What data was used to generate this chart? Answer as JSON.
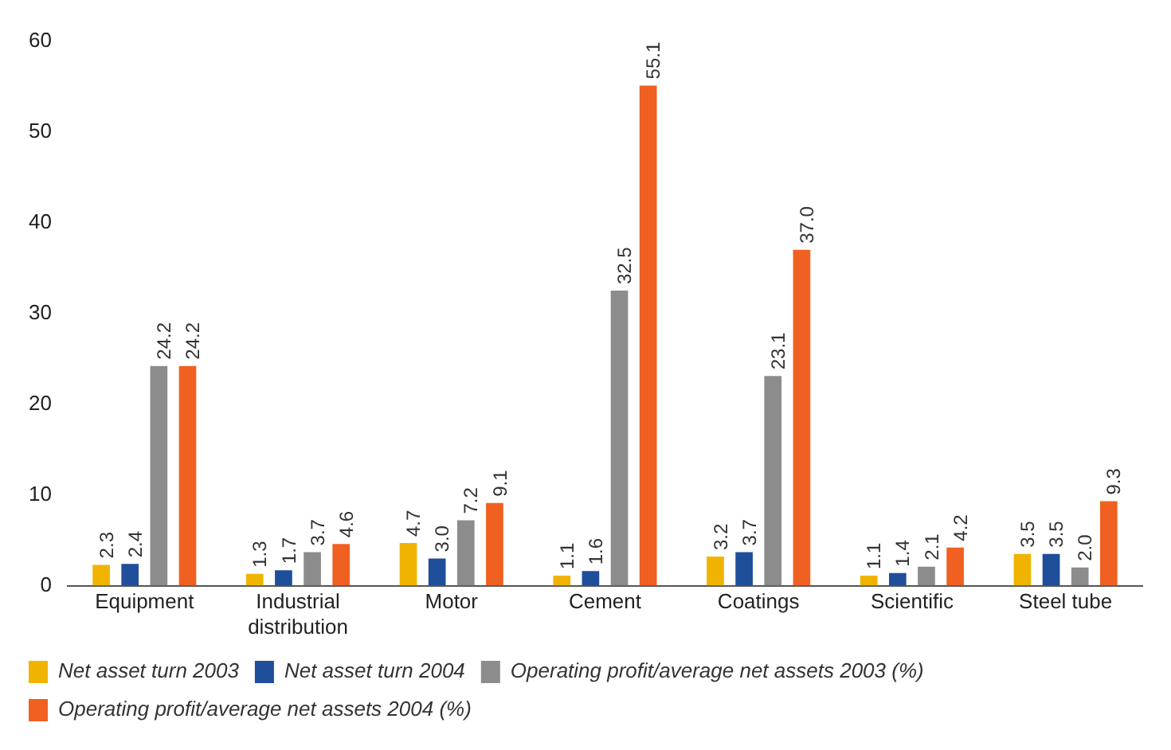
{
  "chart_data": {
    "type": "bar",
    "categories": [
      "Equipment",
      "Industrial distribution",
      "Motor",
      "Cement",
      "Coatings",
      "Scientific",
      "Steel tube"
    ],
    "ylim": [
      0,
      60
    ],
    "yticks": [
      0,
      10,
      20,
      30,
      40,
      50,
      60
    ],
    "grid": false,
    "legend": "bottom",
    "series": [
      {
        "name": "Net asset turn 2003",
        "color": "#f0b400",
        "values": [
          2.3,
          1.3,
          4.7,
          1.1,
          3.2,
          1.1,
          3.5
        ],
        "value_labels": [
          "2.3",
          "1.3",
          "4.7",
          "1.1",
          "3.2",
          "1.1",
          "3.5"
        ]
      },
      {
        "name": "Net asset turn 2004",
        "color": "#1f4e9a",
        "values": [
          2.4,
          1.7,
          3.0,
          1.6,
          3.7,
          1.4,
          3.5
        ],
        "value_labels": [
          "2.4",
          "1.7",
          "3.0",
          "1.6",
          "3.7",
          "1.4",
          "3.5"
        ]
      },
      {
        "name": "Operating profit/average net assets 2003 (%)",
        "color": "#8c8c8c",
        "values": [
          24.2,
          3.7,
          7.2,
          32.5,
          23.1,
          2.1,
          2.0
        ],
        "value_labels": [
          "24.2",
          "3.7",
          "7.2",
          "32.5",
          "23.1",
          "2.1",
          "2.0"
        ]
      },
      {
        "name": "Operating profit/average net assets 2004 (%)",
        "color": "#f06020",
        "values": [
          24.2,
          4.6,
          9.1,
          55.1,
          37.0,
          4.2,
          9.3
        ],
        "value_labels": [
          "24.2",
          "4.6",
          "9.1",
          "55.1",
          "37.0",
          "4.2",
          "9.3"
        ]
      }
    ]
  }
}
